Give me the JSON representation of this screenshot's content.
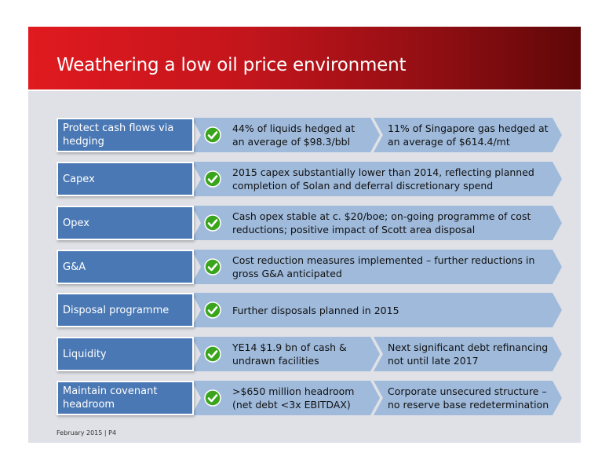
{
  "slide": {
    "title": "Weathering a low oil price environment",
    "footer": "February 2015 | P4"
  },
  "rows": [
    {
      "label": "Protect cash flows via hedging",
      "items": [
        "44% of liquids hedged at an average of $98.3/bbl",
        "11% of Singapore gas hedged at an average of $614.4/mt"
      ]
    },
    {
      "label": "Capex",
      "items": [
        "2015 capex substantially lower than 2014, reflecting planned completion of Solan and deferral discretionary spend"
      ]
    },
    {
      "label": "Opex",
      "items": [
        "Cash opex stable at c. $20/boe; on-going programme of cost reductions; positive impact of Scott area disposal"
      ]
    },
    {
      "label": "G&A",
      "items": [
        "Cost reduction measures implemented – further reductions in gross G&A anticipated"
      ]
    },
    {
      "label": "Disposal programme",
      "items": [
        "Further disposals planned in 2015"
      ]
    },
    {
      "label": "Liquidity",
      "items": [
        "YE14 $1.9 bn of cash & undrawn facilities",
        "Next significant debt refinancing not until late 2017"
      ]
    },
    {
      "label": "Maintain covenant headroom",
      "items": [
        ">$650 million headroom (net debt <3x EBITDAX)",
        "Corporate unsecured structure – no reserve base redetermination"
      ]
    }
  ],
  "icons": {
    "check": "check-circle-icon",
    "check_color": "#3aa51c",
    "label_color": "#4a78b4",
    "chevron_color": "#9fbadb",
    "header_color": "#c3151c"
  }
}
